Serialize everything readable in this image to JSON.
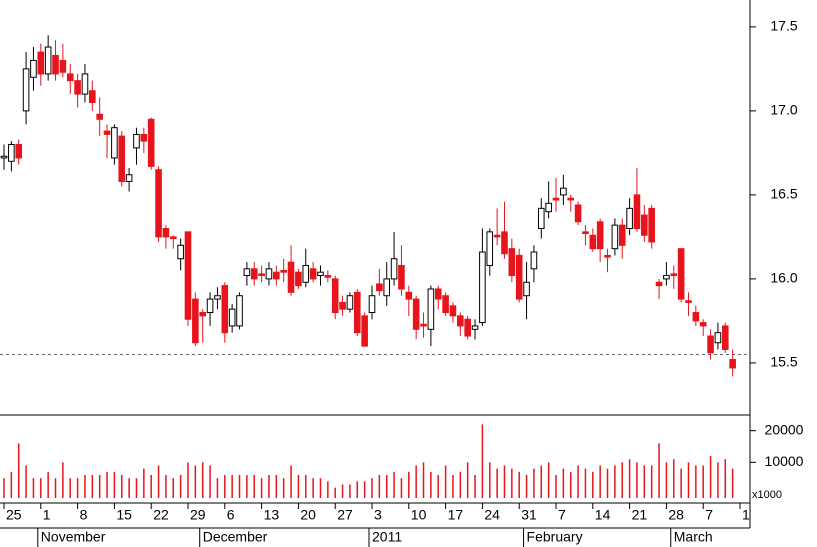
{
  "chart_data": [
    {
      "type": "candlestick",
      "categories": [
        "25",
        null,
        null,
        null,
        null,
        "1",
        null,
        null,
        null,
        null,
        "8",
        null,
        null,
        null,
        null,
        "15",
        null,
        null,
        null,
        null,
        "22",
        null,
        null,
        null,
        null,
        "29",
        null,
        null,
        null,
        null,
        "6",
        null,
        null,
        null,
        null,
        "13",
        null,
        null,
        null,
        null,
        "20",
        null,
        null,
        null,
        null,
        "27",
        null,
        null,
        null,
        null,
        "3",
        null,
        null,
        null,
        null,
        "10",
        null,
        null,
        null,
        null,
        "17",
        null,
        null,
        null,
        null,
        "24",
        null,
        null,
        null,
        null,
        "31",
        null,
        null,
        null,
        null,
        "7",
        null,
        null,
        null,
        null,
        "14",
        null,
        null,
        null,
        null,
        "21",
        null,
        null,
        null,
        null,
        "28",
        null,
        null,
        null,
        null,
        "7",
        null,
        null,
        null,
        null,
        "1"
      ],
      "month_categories": [
        null,
        null,
        null,
        null,
        null,
        "November",
        null,
        null,
        null,
        null,
        null,
        null,
        null,
        null,
        null,
        null,
        null,
        null,
        null,
        null,
        null,
        null,
        null,
        null,
        null,
        null,
        null,
        "December",
        null,
        null,
        null,
        null,
        null,
        null,
        null,
        null,
        null,
        null,
        null,
        null,
        null,
        null,
        null,
        null,
        null,
        null,
        null,
        null,
        null,
        null,
        "2011",
        null,
        null,
        null,
        null,
        null,
        null,
        null,
        null,
        null,
        null,
        null,
        null,
        null,
        null,
        null,
        null,
        null,
        null,
        null,
        null,
        "February",
        null,
        null,
        null,
        null,
        null,
        null,
        null,
        null,
        null,
        null,
        null,
        null,
        null,
        null,
        null,
        null,
        null,
        null,
        null,
        "March",
        null,
        null,
        null,
        null,
        null,
        null,
        null,
        null,
        null
      ],
      "open": [
        16.72,
        16.7,
        16.8,
        17.0,
        17.2,
        17.35,
        17.22,
        17.33,
        17.3,
        17.22,
        17.18,
        17.1,
        17.12,
        16.98,
        16.88,
        16.72,
        16.85,
        16.58,
        16.78,
        16.86,
        16.95,
        16.65,
        16.3,
        16.25,
        16.12,
        16.28,
        15.88,
        15.8,
        15.8,
        15.88,
        15.96,
        15.72,
        15.72,
        16.02,
        16.06,
        16.03,
        16.0,
        16.04,
        16.05,
        16.1,
        16.04,
        15.98,
        16.06,
        16.02,
        16.02,
        16.0,
        15.86,
        15.82,
        15.92,
        15.78,
        15.8,
        15.97,
        15.9,
        16.0,
        16.08,
        15.92,
        15.88,
        15.73,
        15.7,
        15.94,
        15.9,
        15.84,
        15.78,
        15.76,
        15.7,
        15.74,
        16.08,
        16.26,
        16.28,
        16.18,
        16.14,
        15.9,
        16.06,
        16.3,
        16.4,
        16.48,
        16.5,
        16.48,
        16.44,
        16.28,
        16.26,
        16.34,
        16.14,
        16.18,
        16.32,
        16.3,
        16.5,
        16.38,
        16.42,
        15.98,
        16.0,
        16.03,
        16.18,
        15.87,
        15.8,
        15.74,
        15.66,
        15.62,
        15.72,
        15.52,
        null
      ],
      "high": [
        16.8,
        16.82,
        16.83,
        17.35,
        17.38,
        17.4,
        17.45,
        17.42,
        17.4,
        17.28,
        17.22,
        17.28,
        17.18,
        17.08,
        16.92,
        16.92,
        16.88,
        16.66,
        16.9,
        16.9,
        16.96,
        16.67,
        16.32,
        16.26,
        16.24,
        16.28,
        15.92,
        15.82,
        15.92,
        15.95,
        15.98,
        15.85,
        15.92,
        16.1,
        16.1,
        16.08,
        16.1,
        16.08,
        16.12,
        16.2,
        16.06,
        16.18,
        16.1,
        16.08,
        16.05,
        16.02,
        15.9,
        15.92,
        15.94,
        15.8,
        15.96,
        16.06,
        16.1,
        16.28,
        16.2,
        15.96,
        15.9,
        15.8,
        15.96,
        15.96,
        15.92,
        15.86,
        15.8,
        15.78,
        15.76,
        16.3,
        16.3,
        16.42,
        16.46,
        16.24,
        16.18,
        16.1,
        16.2,
        16.48,
        16.58,
        16.6,
        16.62,
        16.5,
        16.46,
        16.32,
        16.3,
        16.36,
        16.18,
        16.36,
        16.36,
        16.48,
        16.66,
        16.44,
        16.44,
        16.0,
        16.1,
        16.08,
        16.18,
        15.92,
        15.84,
        15.76,
        15.7,
        15.74,
        15.74,
        15.58,
        null
      ],
      "low": [
        16.65,
        16.64,
        16.68,
        16.92,
        17.12,
        17.15,
        17.18,
        17.18,
        17.2,
        17.1,
        17.02,
        17.05,
        17.0,
        16.85,
        16.72,
        16.68,
        16.55,
        16.52,
        16.68,
        16.75,
        16.65,
        16.22,
        16.18,
        16.18,
        16.05,
        15.72,
        15.6,
        15.62,
        15.72,
        15.82,
        15.62,
        15.68,
        15.7,
        15.96,
        15.96,
        15.98,
        15.96,
        15.96,
        15.98,
        15.9,
        15.94,
        15.95,
        15.98,
        15.96,
        15.98,
        15.76,
        15.78,
        15.8,
        15.66,
        15.6,
        15.76,
        15.9,
        15.84,
        15.96,
        15.9,
        15.78,
        15.64,
        15.65,
        15.6,
        15.82,
        15.78,
        15.74,
        15.66,
        15.64,
        15.64,
        15.72,
        16.02,
        16.2,
        16.12,
        15.98,
        15.86,
        15.76,
        15.98,
        16.24,
        16.36,
        16.4,
        16.44,
        16.4,
        16.32,
        16.2,
        16.16,
        16.1,
        16.04,
        16.14,
        16.12,
        16.26,
        16.28,
        16.22,
        16.18,
        15.88,
        15.96,
        15.94,
        15.86,
        15.78,
        15.72,
        15.66,
        15.52,
        15.58,
        15.56,
        15.42,
        null
      ],
      "close": [
        16.73,
        16.8,
        16.72,
        17.25,
        17.3,
        17.22,
        17.38,
        17.22,
        17.23,
        17.18,
        17.1,
        17.22,
        17.05,
        16.95,
        16.86,
        16.9,
        16.58,
        16.62,
        16.86,
        16.82,
        16.67,
        16.25,
        16.25,
        16.24,
        16.2,
        15.76,
        15.62,
        15.78,
        15.88,
        15.9,
        15.68,
        15.82,
        15.9,
        16.06,
        16.0,
        16.02,
        16.06,
        16.0,
        16.04,
        15.92,
        15.96,
        16.08,
        16.0,
        16.04,
        16.01,
        15.8,
        15.82,
        15.9,
        15.68,
        15.6,
        15.9,
        15.93,
        16.0,
        16.12,
        15.94,
        15.88,
        15.7,
        15.72,
        15.94,
        15.88,
        15.8,
        15.78,
        15.72,
        15.66,
        15.72,
        16.16,
        16.28,
        16.25,
        16.15,
        16.02,
        15.88,
        15.98,
        16.16,
        16.42,
        16.45,
        16.47,
        16.54,
        16.47,
        16.34,
        16.27,
        16.18,
        16.18,
        16.13,
        16.32,
        16.2,
        16.42,
        16.3,
        16.26,
        16.22,
        15.96,
        16.02,
        16.02,
        15.88,
        15.86,
        15.75,
        15.72,
        15.56,
        15.68,
        15.58,
        15.47,
        null
      ],
      "up_color": "#ffffff",
      "down_color": "#e8141c",
      "reference_line": 15.55,
      "ylim": [
        15.19,
        17.66
      ],
      "yticks": [
        {
          "value": 15.5,
          "label": "15.5"
        },
        {
          "value": 16.0,
          "label": "16.0"
        },
        {
          "value": 16.5,
          "label": "16.5"
        },
        {
          "value": 17.0,
          "label": "17.0"
        },
        {
          "value": 17.5,
          "label": "17.5"
        }
      ]
    },
    {
      "type": "bar",
      "values": [
        5000,
        7000,
        16000,
        9000,
        5000,
        5000,
        7000,
        5000,
        10000,
        5000,
        5000,
        6000,
        6000,
        6000,
        7000,
        7000,
        6000,
        5000,
        5000,
        8000,
        6000,
        9000,
        6000,
        5000,
        6000,
        10000,
        9000,
        10000,
        9000,
        5000,
        6000,
        6000,
        6000,
        6000,
        6000,
        5000,
        6000,
        6000,
        5000,
        9000,
        6000,
        6000,
        5000,
        5000,
        4000,
        2000,
        3000,
        3000,
        4000,
        4000,
        5000,
        6000,
        6000,
        7000,
        5000,
        7000,
        9000,
        10000,
        7000,
        6000,
        9000,
        6000,
        7000,
        10000,
        6000,
        22000,
        10000,
        8000,
        9000,
        8000,
        7000,
        6000,
        8000,
        9000,
        10000,
        6000,
        8000,
        7000,
        9000,
        8000,
        7000,
        9000,
        8000,
        9000,
        10000,
        11000,
        10000,
        9000,
        9000,
        16000,
        10000,
        11000,
        8000,
        10000,
        9000,
        9000,
        12000,
        10000,
        11000,
        8000,
        null
      ],
      "color": "#e8141c",
      "ylim": [
        0,
        24000
      ],
      "yticks": [
        10000,
        20000
      ],
      "unit_label": "x1000"
    }
  ]
}
